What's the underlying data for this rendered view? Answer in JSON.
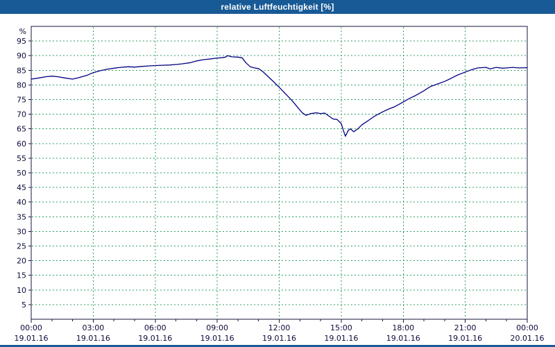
{
  "title": "relative Luftfeuchtigkeit [%]",
  "colors": {
    "titlebar_bg": "#175a96",
    "titlebar_text": "#ffffff",
    "grid": "#2f9e62",
    "line": "#000082",
    "axis": "#14143c",
    "plot_border": "#14143c",
    "background": "#ffffff"
  },
  "chart_data": {
    "type": "line",
    "title": "relative Luftfeuchtigkeit [%]",
    "xlabel": "",
    "ylabel": "%",
    "ylim": [
      0,
      100
    ],
    "xlim_hours": [
      0,
      24
    ],
    "grid": "dashed, green, horizontal every 5%, vertical every 3h",
    "legend_position": "none",
    "y_ticks": [
      95,
      90,
      85,
      80,
      75,
      70,
      65,
      60,
      55,
      50,
      45,
      40,
      35,
      30,
      25,
      20,
      15,
      10,
      5
    ],
    "x_ticks": [
      {
        "hour": 0,
        "time": "00:00",
        "date": "19.01.16"
      },
      {
        "hour": 3,
        "time": "03:00",
        "date": "19.01.16"
      },
      {
        "hour": 6,
        "time": "06:00",
        "date": "19.01.16"
      },
      {
        "hour": 9,
        "time": "09:00",
        "date": "19.01.16"
      },
      {
        "hour": 12,
        "time": "12:00",
        "date": "19.01.16"
      },
      {
        "hour": 15,
        "time": "15:00",
        "date": "19.01.16"
      },
      {
        "hour": 18,
        "time": "18:00",
        "date": "19.01.16"
      },
      {
        "hour": 21,
        "time": "21:00",
        "date": "19.01.16"
      },
      {
        "hour": 24,
        "time": "00:00",
        "date": "20.01.16"
      }
    ],
    "series": [
      {
        "name": "relative Luftfeuchtigkeit",
        "x": [
          0,
          0.3,
          0.7,
          1,
          1.3,
          1.7,
          2,
          2.3,
          2.7,
          3,
          3.3,
          3.7,
          4,
          4.3,
          4.7,
          5,
          5.3,
          5.7,
          6,
          6.3,
          6.7,
          7,
          7.3,
          7.7,
          8,
          8.3,
          8.7,
          9,
          9.2,
          9.4,
          9.5,
          9.7,
          10,
          10.2,
          10.4,
          10.6,
          10.8,
          11,
          11.2,
          11.5,
          11.8,
          12,
          12.3,
          12.6,
          12.9,
          13.1,
          13.3,
          13.5,
          13.8,
          14,
          14.2,
          14.4,
          14.6,
          14.8,
          15,
          15.1,
          15.2,
          15.35,
          15.45,
          15.6,
          15.8,
          16,
          16.3,
          16.6,
          17,
          17.3,
          17.6,
          18,
          18.3,
          18.6,
          19,
          19.3,
          19.6,
          20,
          20.3,
          20.6,
          21,
          21.3,
          21.6,
          22,
          22.2,
          22.5,
          22.8,
          23,
          23.3,
          23.6,
          24
        ],
        "y": [
          82,
          82.3,
          82.8,
          83,
          82.8,
          82.3,
          82,
          82.5,
          83.3,
          84.2,
          84.8,
          85.4,
          85.7,
          86,
          86.2,
          86.1,
          86.3,
          86.5,
          86.6,
          86.7,
          86.8,
          87,
          87.2,
          87.6,
          88.2,
          88.6,
          88.9,
          89.2,
          89.3,
          89.5,
          90,
          89.6,
          89.5,
          89.3,
          87.5,
          86.2,
          85.8,
          85.6,
          84.6,
          82.6,
          80.6,
          79.2,
          77,
          74.8,
          72.3,
          70.6,
          69.6,
          70.2,
          70.5,
          70.2,
          70.4,
          69.4,
          68.4,
          68.2,
          66.8,
          64.5,
          62.5,
          64.6,
          65,
          64,
          65,
          66.4,
          67.8,
          69.3,
          70.8,
          71.8,
          72.6,
          74.2,
          75.4,
          76.4,
          78,
          79.4,
          80.2,
          81.2,
          82.2,
          83.3,
          84.4,
          85.2,
          85.8,
          86,
          85.5,
          86,
          85.7,
          85.8,
          86,
          85.8,
          85.9
        ]
      }
    ]
  }
}
